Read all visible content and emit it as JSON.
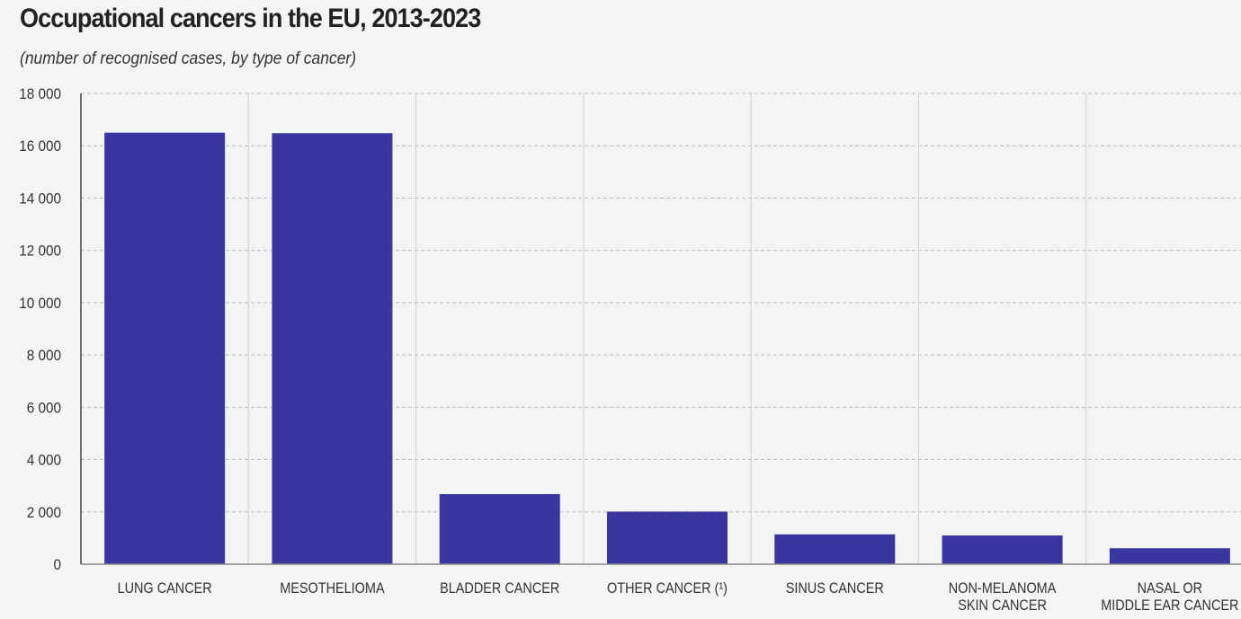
{
  "chart_data": {
    "type": "bar",
    "title": "Occupational cancers in the EU, 2013-2023",
    "subtitle": "(number of recognised cases, by type of cancer)",
    "categories": [
      [
        "LUNG CANCER"
      ],
      [
        "MESOTHELIOMA"
      ],
      [
        "BLADDER CANCER"
      ],
      [
        "OTHER CANCER (¹)"
      ],
      [
        "SINUS CANCER"
      ],
      [
        "NON-MELANOMA",
        "SKIN CANCER"
      ],
      [
        "NASAL OR",
        "MIDDLE EAR CANCER"
      ]
    ],
    "values": [
      16500,
      16480,
      2680,
      2010,
      1140,
      1100,
      610
    ],
    "ylim": [
      0,
      18000
    ],
    "yticks": [
      0,
      2000,
      4000,
      6000,
      8000,
      10000,
      12000,
      14000,
      16000,
      18000
    ],
    "ytick_labels": [
      "0",
      "2 000",
      "4 000",
      "6 000",
      "8 000",
      "10 000",
      "12 000",
      "14 000",
      "16 000",
      "18 000"
    ],
    "grid": true,
    "bar_color": "#3a36a0"
  }
}
